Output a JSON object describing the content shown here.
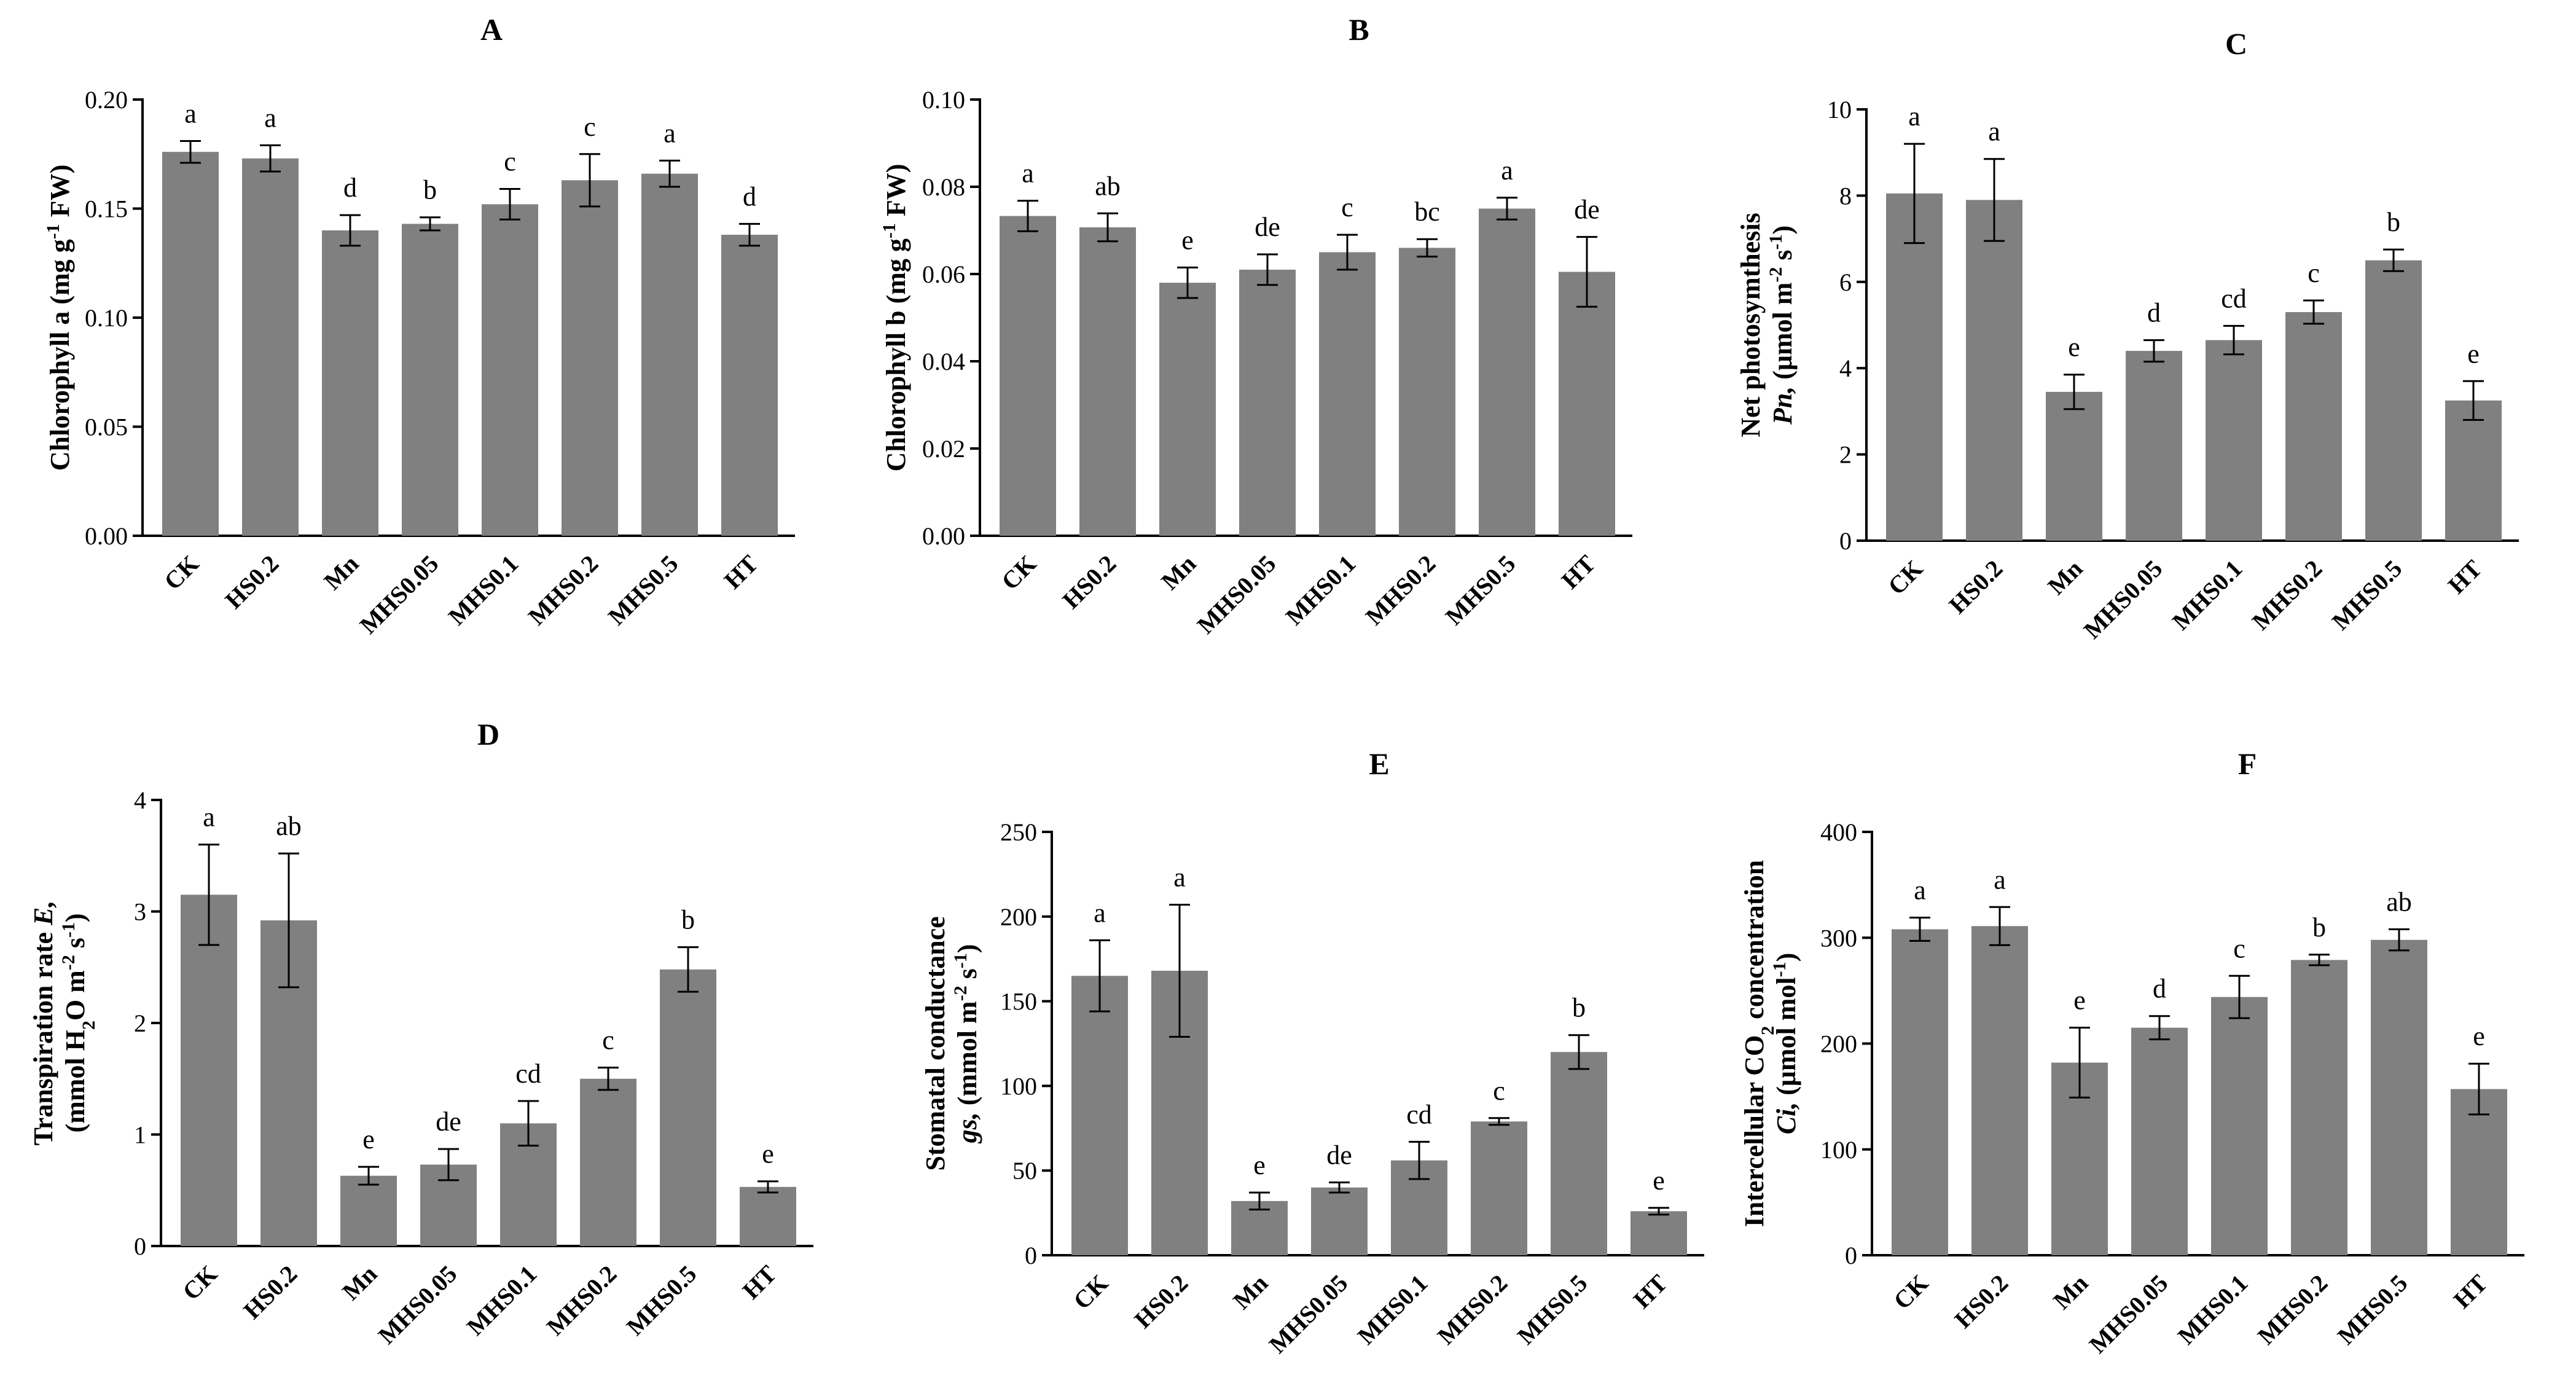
{
  "chart_data": [
    {
      "panel": "A",
      "type": "bar",
      "title": "A",
      "ylabel_lines": [
        [
          {
            "t": "Chlorophyll a (mg g"
          },
          {
            "t": "-1",
            "sup": true
          },
          {
            "t": " FW)"
          }
        ]
      ],
      "ylim": [
        0,
        0.2
      ],
      "yticks": [
        "0.00",
        "0.05",
        "0.10",
        "0.15",
        "0.20"
      ],
      "categories": [
        "CK",
        "HS0.2",
        "Mn",
        "MHS0.05",
        "MHS0.1",
        "MHS0.2",
        "MHS0.5",
        "HT"
      ],
      "values": [
        0.176,
        0.173,
        0.14,
        0.143,
        0.152,
        0.163,
        0.166,
        0.138
      ],
      "errors": [
        0.005,
        0.006,
        0.007,
        0.003,
        0.007,
        0.012,
        0.006,
        0.005
      ],
      "letters": [
        "a",
        "a",
        "d",
        "b",
        "c",
        "c",
        "a",
        "d"
      ]
    },
    {
      "panel": "B",
      "type": "bar",
      "title": "B",
      "ylabel_lines": [
        [
          {
            "t": "Chlorophyll b (mg g"
          },
          {
            "t": "-1",
            "sup": true
          },
          {
            "t": " FW)"
          }
        ]
      ],
      "ylim": [
        0,
        0.1
      ],
      "yticks": [
        "0.00",
        "0.02",
        "0.04",
        "0.06",
        "0.08",
        "0.10"
      ],
      "categories": [
        "CK",
        "HS0.2",
        "Mn",
        "MHS0.05",
        "MHS0.1",
        "MHS0.2",
        "MHS0.5",
        "HT"
      ],
      "values": [
        0.0733,
        0.0707,
        0.058,
        0.061,
        0.065,
        0.066,
        0.075,
        0.0605
      ],
      "errors": [
        0.0035,
        0.0032,
        0.0035,
        0.0035,
        0.004,
        0.002,
        0.0025,
        0.008
      ],
      "letters": [
        "a",
        "ab",
        "e",
        "de",
        "c",
        "bc",
        "a",
        "de"
      ]
    },
    {
      "panel": "C",
      "type": "bar",
      "title": "C",
      "ylabel_lines": [
        [
          {
            "t": "Net photosymthesis"
          }
        ],
        [
          {
            "t": "Pn,",
            "i": true
          },
          {
            "t": " (μmol m"
          },
          {
            "t": "-2",
            "sup": true
          },
          {
            "t": " s"
          },
          {
            "t": "-1",
            "sup": true
          },
          {
            "t": ")"
          }
        ]
      ],
      "ylim": [
        0,
        10
      ],
      "yticks": [
        "0",
        "2",
        "4",
        "6",
        "8",
        "10"
      ],
      "categories": [
        "CK",
        "HS0.2",
        "Mn",
        "MHS0.05",
        "MHS0.1",
        "MHS0.2",
        "MHS0.5",
        "HT"
      ],
      "values": [
        8.05,
        7.9,
        3.45,
        4.4,
        4.65,
        5.3,
        6.5,
        3.25
      ],
      "errors": [
        1.15,
        0.95,
        0.4,
        0.25,
        0.33,
        0.27,
        0.25,
        0.45
      ],
      "letters": [
        "a",
        "a",
        "e",
        "d",
        "cd",
        "c",
        "b",
        "e"
      ]
    },
    {
      "panel": "D",
      "type": "bar",
      "title": "D",
      "ylabel_lines": [
        [
          {
            "t": "Transpiration rate "
          },
          {
            "t": "E,",
            "i": true
          }
        ],
        [
          {
            "t": "(mmol H"
          },
          {
            "t": "2",
            "sub": true
          },
          {
            "t": "O m"
          },
          {
            "t": "-2",
            "sup": true
          },
          {
            "t": " s"
          },
          {
            "t": "-1",
            "sup": true
          },
          {
            "t": ")"
          }
        ]
      ],
      "ylim": [
        0,
        4
      ],
      "yticks": [
        "0",
        "1",
        "2",
        "3",
        "4"
      ],
      "categories": [
        "CK",
        "HS0.2",
        "Mn",
        "MHS0.05",
        "MHS0.1",
        "MHS0.2",
        "MHS0.5",
        "HT"
      ],
      "values": [
        3.15,
        2.92,
        0.63,
        0.73,
        1.1,
        1.5,
        2.48,
        0.53
      ],
      "errors": [
        0.45,
        0.6,
        0.08,
        0.14,
        0.2,
        0.1,
        0.2,
        0.05
      ],
      "letters": [
        "a",
        "ab",
        "e",
        "de",
        "cd",
        "c",
        "b",
        "e"
      ]
    },
    {
      "panel": "E",
      "type": "bar",
      "title": "E",
      "ylabel_lines": [
        [
          {
            "t": "Stomatal conductance"
          }
        ],
        [
          {
            "t": "gs,",
            "i": true
          },
          {
            "t": " (mmol m"
          },
          {
            "t": "-2",
            "sup": true
          },
          {
            "t": " s"
          },
          {
            "t": "-1",
            "sup": true
          },
          {
            "t": ")"
          }
        ]
      ],
      "ylim": [
        0,
        250
      ],
      "yticks": [
        "0",
        "50",
        "100",
        "150",
        "200",
        "250"
      ],
      "categories": [
        "CK",
        "HS0.2",
        "Mn",
        "MHS0.05",
        "MHS0.1",
        "MHS0.2",
        "MHS0.5",
        "HT"
      ],
      "values": [
        165,
        168,
        32,
        40,
        56,
        79,
        120,
        26
      ],
      "errors": [
        21,
        39,
        5,
        3,
        11,
        2,
        10,
        2
      ],
      "letters": [
        "a",
        "a",
        "e",
        "de",
        "cd",
        "c",
        "b",
        "e"
      ]
    },
    {
      "panel": "F",
      "type": "bar",
      "title": "F",
      "ylabel_lines": [
        [
          {
            "t": "Intercellular CO"
          },
          {
            "t": "2",
            "sub": true
          },
          {
            "t": " concentration"
          }
        ],
        [
          {
            "t": "Ci,",
            "i": true
          },
          {
            "t": " (μmol mol"
          },
          {
            "t": "-1",
            "sup": true
          },
          {
            "t": ")"
          }
        ]
      ],
      "ylim": [
        0,
        400
      ],
      "yticks": [
        "0",
        "100",
        "200",
        "300",
        "400"
      ],
      "categories": [
        "CK",
        "HS0.2",
        "Mn",
        "MHS0.05",
        "MHS0.1",
        "MHS0.2",
        "MHS0.5",
        "HT"
      ],
      "values": [
        308,
        311,
        182,
        215,
        244,
        279,
        298,
        157
      ],
      "errors": [
        11,
        18,
        33,
        11,
        20,
        5,
        10,
        24
      ],
      "letters": [
        "a",
        "a",
        "e",
        "d",
        "c",
        "b",
        "ab",
        "e"
      ]
    }
  ],
  "colors": {
    "bar": "#808080",
    "axis": "#000000"
  }
}
